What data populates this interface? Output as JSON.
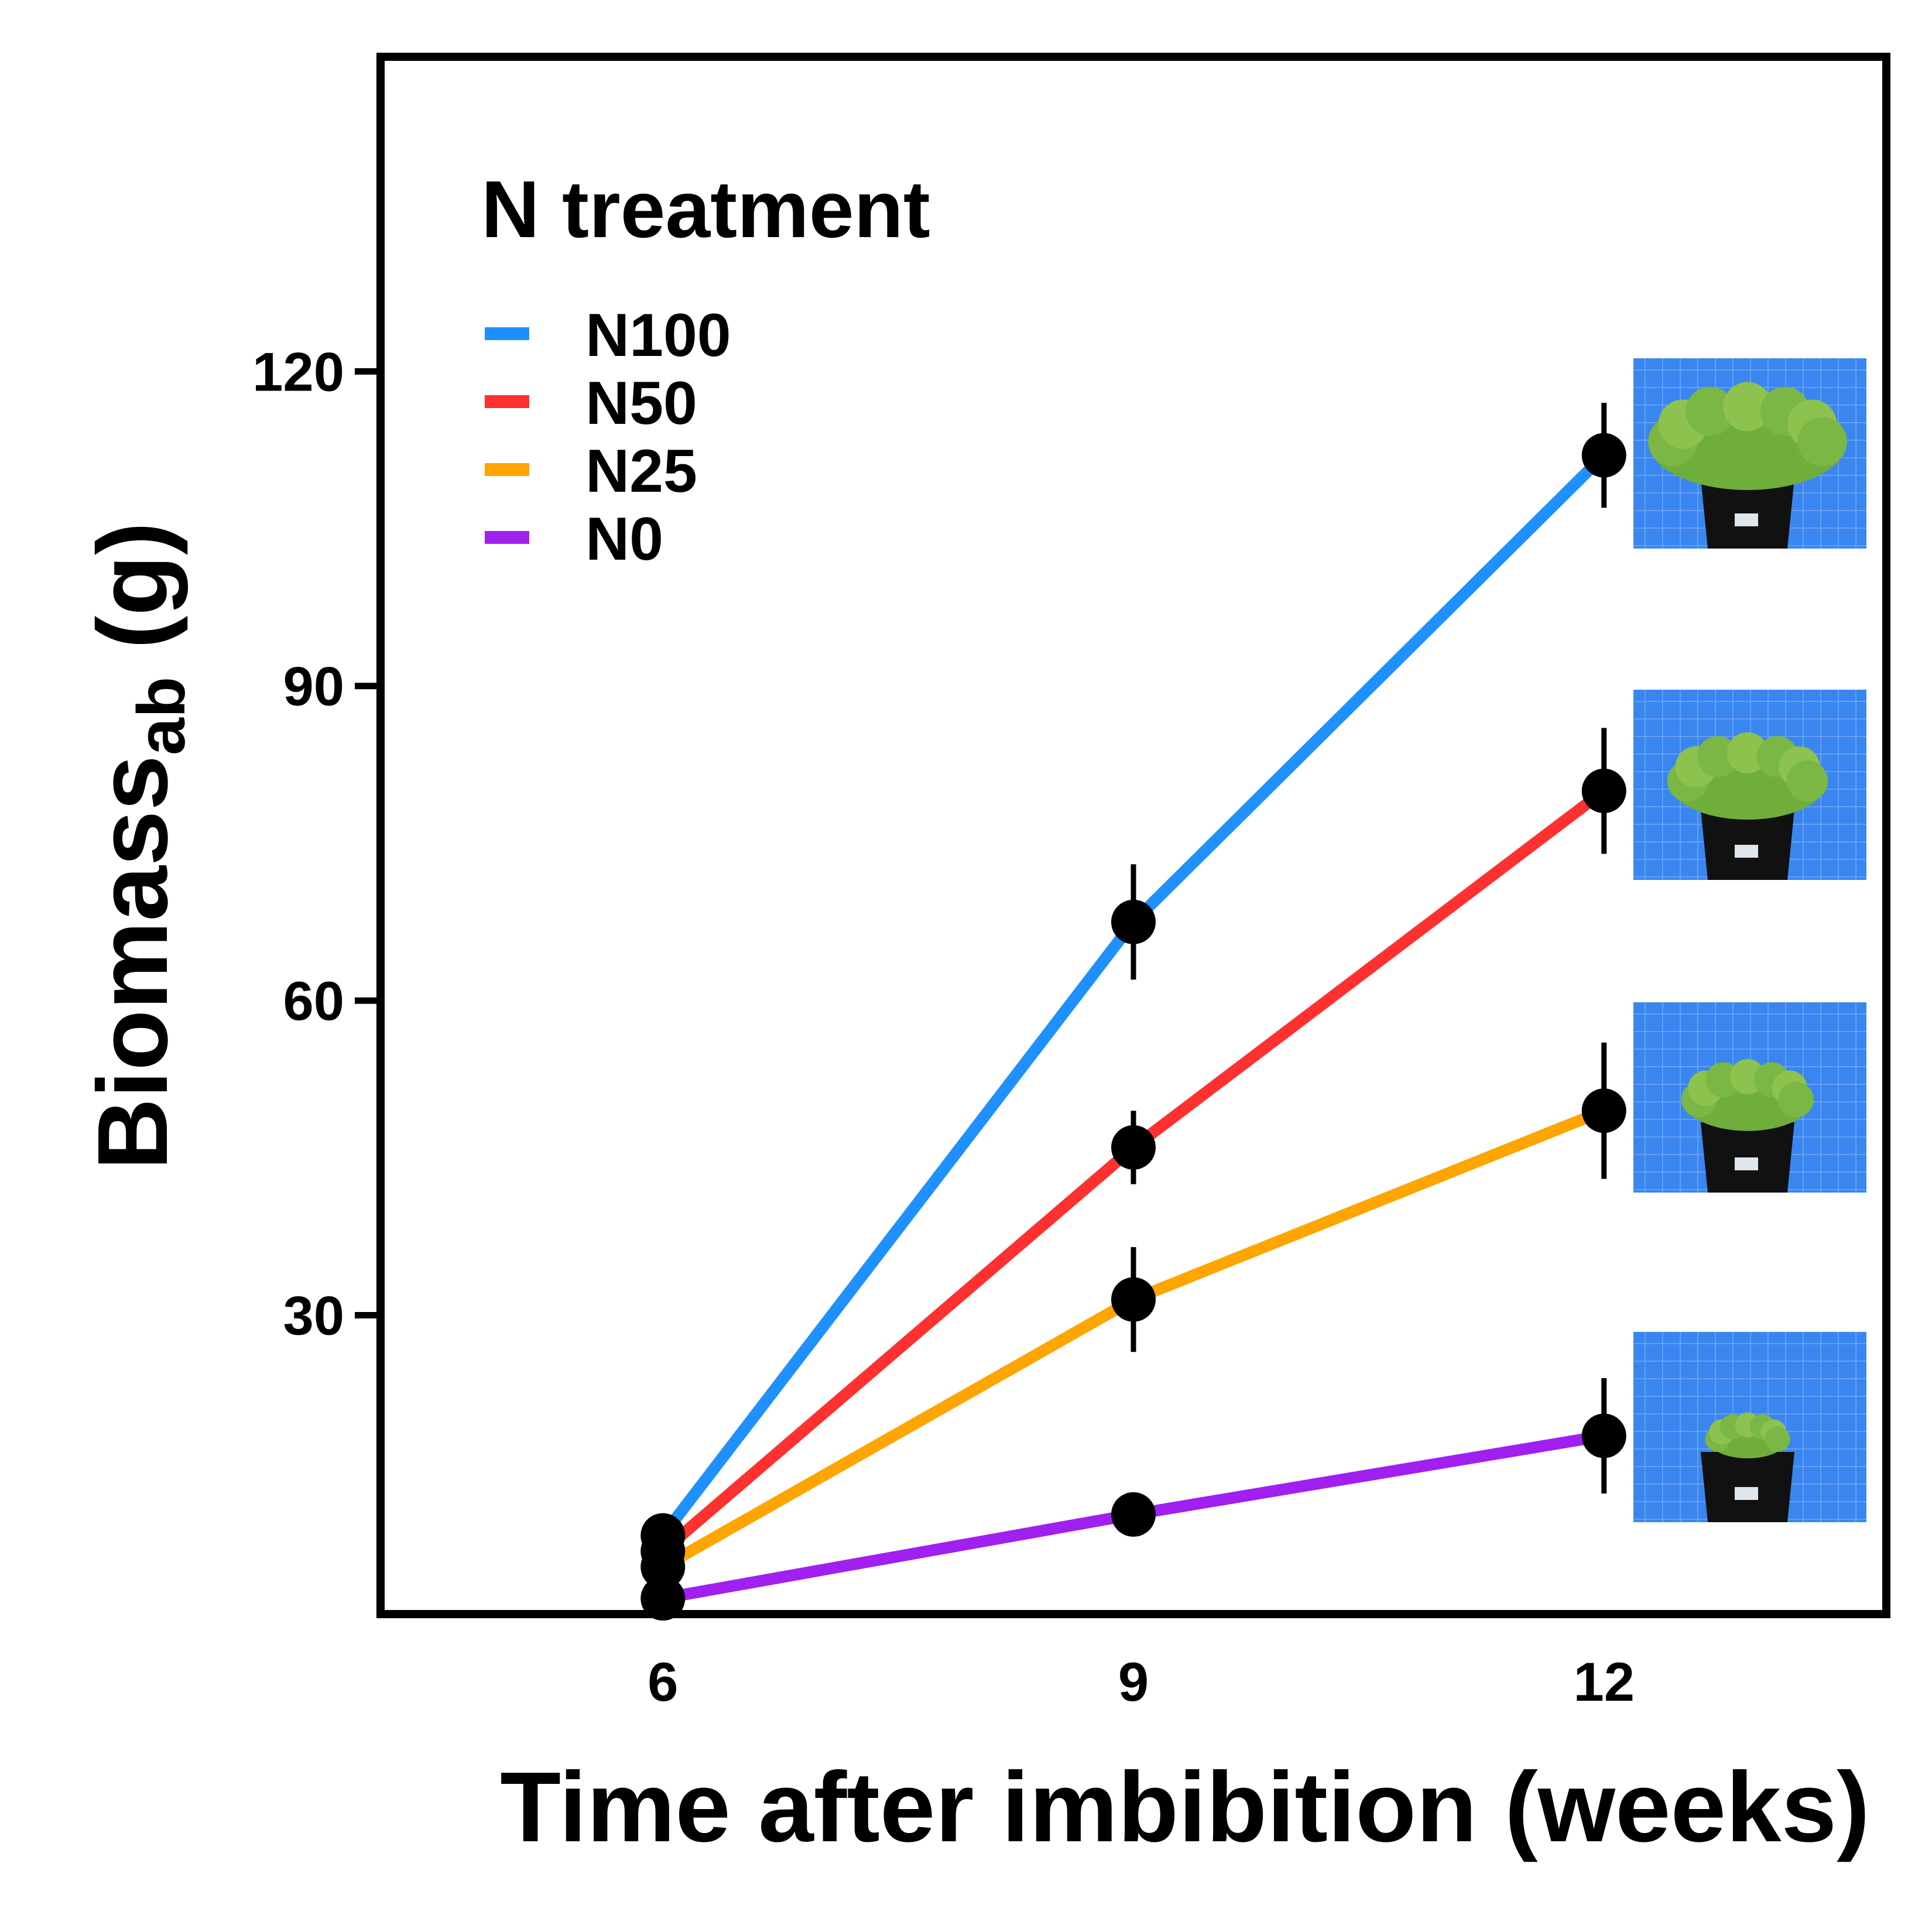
{
  "chart_data": {
    "type": "line",
    "title": "",
    "xlabel": "Time after imbibition (weeks)",
    "ylabel_main": "Biomass",
    "ylabel_sub": "ab",
    "ylabel_unit": " (g)",
    "x": [
      6,
      9,
      12
    ],
    "xticks": [
      "6",
      "9",
      "12"
    ],
    "yticks": [
      "30",
      "60",
      "90",
      "120"
    ],
    "xlim": [
      4.2,
      13.8
    ],
    "ylim": [
      1.5,
      150
    ],
    "grid": false,
    "legend": {
      "title": "N treatment",
      "position": "top-left"
    },
    "series": [
      {
        "name": "N100",
        "color": "#1e90ff",
        "values": [
          9,
          67.5,
          112
        ],
        "errors": [
          1.5,
          5.5,
          5
        ]
      },
      {
        "name": "N50",
        "color": "#ff3030",
        "values": [
          7.5,
          46,
          80
        ],
        "errors": [
          1,
          3.5,
          6
        ]
      },
      {
        "name": "N25",
        "color": "#ffa500",
        "values": [
          6,
          31.5,
          49.5
        ],
        "errors": [
          1,
          5,
          6.5
        ]
      },
      {
        "name": "N0",
        "color": "#a020f0",
        "values": [
          3,
          11,
          18.5
        ],
        "errors": [
          0.5,
          1,
          5.5
        ]
      }
    ],
    "marker_color": "#000000",
    "inset_images": [
      {
        "name": "lettuce-n100-photo",
        "series": "N100"
      },
      {
        "name": "lettuce-n50-photo",
        "series": "N50"
      },
      {
        "name": "lettuce-n25-photo",
        "series": "N25"
      },
      {
        "name": "lettuce-n0-photo",
        "series": "N0"
      }
    ]
  }
}
